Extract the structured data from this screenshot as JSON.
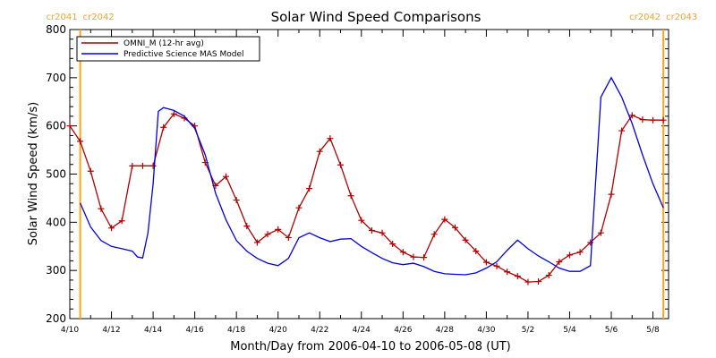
{
  "chart_data": {
    "type": "line",
    "title": "Solar Wind Speed Comparisons",
    "xlabel": "Month/Day from 2006-04-10 to 2006-05-08 (UT)",
    "ylabel": "Solar Wind Speed (km/s)",
    "xlim": [
      "2006-04-10",
      "2006-05-08 18:00"
    ],
    "ylim": [
      200,
      800
    ],
    "x_ticks": [
      "2006-04-10",
      "2006-04-12",
      "2006-04-14",
      "2006-04-16",
      "2006-04-18",
      "2006-04-20",
      "2006-04-22",
      "2006-04-24",
      "2006-04-26",
      "2006-04-28",
      "2006-04-30",
      "2006-05-02",
      "2006-05-04",
      "2006-05-06",
      "2006-05-08"
    ],
    "x_tick_labels": [
      "4/10",
      "4/12",
      "4/14",
      "4/16",
      "4/18",
      "4/20",
      "4/22",
      "4/24",
      "4/26",
      "4/28",
      "4/30",
      "5/2",
      "5/4",
      "5/6",
      "5/8"
    ],
    "y_ticks": [
      200,
      300,
      400,
      500,
      600,
      700,
      800
    ],
    "y_tick_labels": [
      "200",
      "300",
      "400",
      "500",
      "600",
      "700",
      "800"
    ],
    "grid": false,
    "legend": "top-left",
    "carrington_markers": [
      {
        "x": "2006-04-10 12:00",
        "label_left": "cr2041",
        "label_right": "cr2042",
        "color": "#ffa21e"
      },
      {
        "x": "2006-05-08 12:00",
        "label_left": "cr2042",
        "label_right": "cr2043",
        "color": "#ffa21e"
      }
    ],
    "series": [
      {
        "name": "OMNI_M (12-hr avg)",
        "color": "#b00000",
        "marker": "plus",
        "x": [
          "2006-04-10",
          "2006-04-10 12:00",
          "2006-04-11",
          "2006-04-11 12:00",
          "2006-04-12",
          "2006-04-12 12:00",
          "2006-04-13",
          "2006-04-13 12:00",
          "2006-04-14",
          "2006-04-14 12:00",
          "2006-04-15",
          "2006-04-15 12:00",
          "2006-04-16",
          "2006-04-16 12:00",
          "2006-04-17",
          "2006-04-17 12:00",
          "2006-04-18",
          "2006-04-18 12:00",
          "2006-04-19",
          "2006-04-19 12:00",
          "2006-04-20",
          "2006-04-20 12:00",
          "2006-04-21",
          "2006-04-21 12:00",
          "2006-04-22",
          "2006-04-22 12:00",
          "2006-04-23",
          "2006-04-23 12:00",
          "2006-04-24",
          "2006-04-24 12:00",
          "2006-04-25",
          "2006-04-25 12:00",
          "2006-04-26",
          "2006-04-26 12:00",
          "2006-04-27",
          "2006-04-27 12:00",
          "2006-04-28",
          "2006-04-28 12:00",
          "2006-04-29",
          "2006-04-29 12:00",
          "2006-04-30",
          "2006-04-30 12:00",
          "2006-05-01",
          "2006-05-01 12:00",
          "2006-05-02",
          "2006-05-02 12:00",
          "2006-05-03",
          "2006-05-03 12:00",
          "2006-05-04",
          "2006-05-04 12:00",
          "2006-05-05",
          "2006-05-05 12:00",
          "2006-05-06",
          "2006-05-06 12:00",
          "2006-05-07",
          "2006-05-07 12:00",
          "2006-05-08",
          "2006-05-08 12:00"
        ],
        "y": [
          600,
          568,
          506,
          428,
          388,
          403,
          517,
          517,
          517,
          597,
          625,
          616,
          600,
          524,
          476,
          495,
          446,
          392,
          358,
          375,
          385,
          368,
          430,
          470,
          547,
          574,
          519,
          455,
          404,
          383,
          378,
          355,
          338,
          328,
          327,
          375,
          406,
          389,
          363,
          340,
          317,
          309,
          297,
          288,
          276,
          277,
          290,
          318,
          332,
          338,
          358,
          378,
          458,
          590,
          622,
          613,
          612,
          612
        ]
      },
      {
        "name": "Predictive Science MAS Model",
        "color": "#0000e0",
        "marker": "none",
        "x": [
          "2006-04-10 12:00",
          "2006-04-11",
          "2006-04-11 12:00",
          "2006-04-12",
          "2006-04-12 12:00",
          "2006-04-13",
          "2006-04-13 06:00",
          "2006-04-13 12:00",
          "2006-04-13 18:00",
          "2006-04-14",
          "2006-04-14 06:00",
          "2006-04-14 12:00",
          "2006-04-15",
          "2006-04-15 12:00",
          "2006-04-16",
          "2006-04-16 12:00",
          "2006-04-17",
          "2006-04-17 12:00",
          "2006-04-18",
          "2006-04-18 12:00",
          "2006-04-19",
          "2006-04-19 12:00",
          "2006-04-20",
          "2006-04-20 12:00",
          "2006-04-21",
          "2006-04-21 12:00",
          "2006-04-22",
          "2006-04-22 12:00",
          "2006-04-23",
          "2006-04-23 12:00",
          "2006-04-24",
          "2006-04-24 12:00",
          "2006-04-25",
          "2006-04-25 12:00",
          "2006-04-26",
          "2006-04-26 12:00",
          "2006-04-27",
          "2006-04-27 12:00",
          "2006-04-28",
          "2006-04-28 12:00",
          "2006-04-29",
          "2006-04-29 12:00",
          "2006-04-30",
          "2006-04-30 12:00",
          "2006-05-01",
          "2006-05-01 12:00",
          "2006-05-02",
          "2006-05-02 12:00",
          "2006-05-03",
          "2006-05-03 12:00",
          "2006-05-04",
          "2006-05-04 12:00",
          "2006-05-05",
          "2006-05-05 12:00",
          "2006-05-06",
          "2006-05-06 12:00",
          "2006-05-07",
          "2006-05-07 12:00",
          "2006-05-08",
          "2006-05-08 12:00"
        ],
        "y": [
          440,
          390,
          362,
          350,
          345,
          340,
          328,
          326,
          378,
          480,
          630,
          638,
          632,
          620,
          595,
          540,
          460,
          405,
          362,
          340,
          325,
          315,
          310,
          325,
          368,
          378,
          368,
          360,
          365,
          366,
          350,
          337,
          325,
          316,
          312,
          315,
          308,
          298,
          293,
          292,
          291,
          295,
          305,
          318,
          342,
          363,
          345,
          330,
          318,
          305,
          298,
          298,
          310,
          660,
          700,
          660,
          605,
          540,
          480,
          430
        ]
      }
    ]
  }
}
